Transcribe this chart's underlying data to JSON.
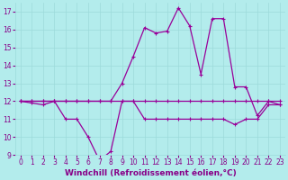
{
  "xlabel": "Windchill (Refroidissement éolien,°C)",
  "background_color": "#b3ecec",
  "grid_color": "#9ddada",
  "line_color": "#990099",
  "x": [
    0,
    1,
    2,
    3,
    4,
    5,
    6,
    7,
    8,
    9,
    10,
    11,
    12,
    13,
    14,
    15,
    16,
    17,
    18,
    19,
    20,
    21,
    22,
    23
  ],
  "series1": [
    12,
    11.9,
    11.8,
    12.0,
    11.0,
    11.0,
    10.0,
    8.7,
    9.2,
    12.0,
    12.0,
    11.0,
    11.0,
    11.0,
    11.0,
    11.0,
    11.0,
    11.0,
    11.0,
    10.7,
    11.0,
    11.0,
    11.8,
    11.8
  ],
  "series2": [
    12,
    12,
    12,
    12,
    12,
    12,
    12,
    12,
    12,
    12,
    12,
    12,
    12,
    12,
    12,
    12,
    12,
    12,
    12,
    12,
    12,
    12,
    12,
    12
  ],
  "series3": [
    12,
    12,
    12,
    12,
    12,
    12,
    12,
    12,
    12,
    13,
    14.5,
    16.1,
    15.8,
    15.9,
    17.2,
    16.2,
    13.5,
    16.6,
    16.6,
    12.8,
    12.8,
    11.2,
    12.0,
    11.8
  ],
  "ylim": [
    9,
    17.5
  ],
  "xlim_min": -0.5,
  "xlim_max": 23.5,
  "yticks": [
    9,
    10,
    11,
    12,
    13,
    14,
    15,
    16,
    17
  ],
  "xticks": [
    0,
    1,
    2,
    3,
    4,
    5,
    6,
    7,
    8,
    9,
    10,
    11,
    12,
    13,
    14,
    15,
    16,
    17,
    18,
    19,
    20,
    21,
    22,
    23
  ],
  "font_color": "#880088",
  "tick_fontsize": 5.5,
  "xlabel_fontsize": 6.5,
  "linewidth": 0.9,
  "markersize": 2.5
}
